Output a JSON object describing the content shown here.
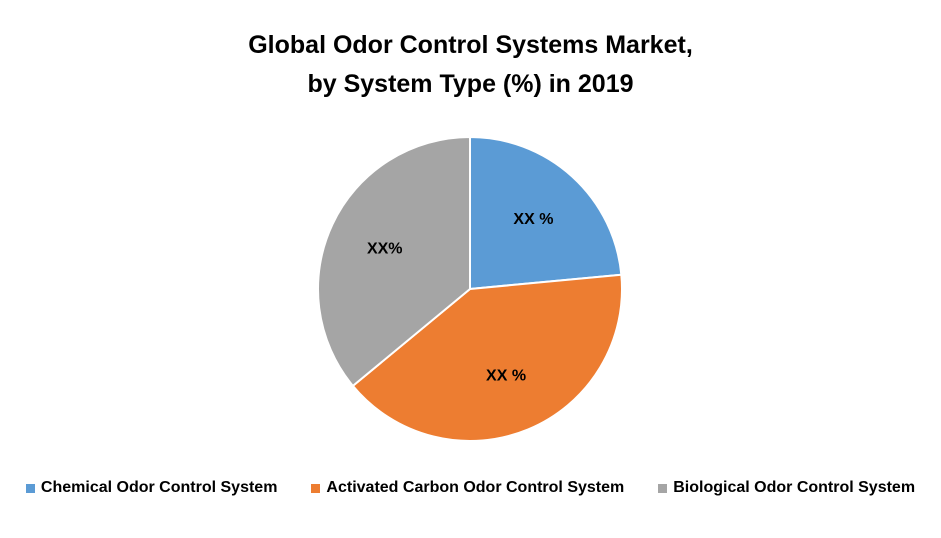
{
  "chart_data": {
    "type": "pie",
    "title_line1": "Global Odor Control Systems Market,",
    "title_line2": "by System Type (%) in 2019",
    "slices": [
      {
        "name": "Chemical Odor Control System",
        "value": 23.5,
        "label": "XX %",
        "color": "#5B9BD5"
      },
      {
        "name": "Activated Carbon Odor Control System",
        "value": 40.5,
        "label": "XX %",
        "color": "#ED7D31"
      },
      {
        "name": "Biological Odor Control System",
        "value": 36.0,
        "label": "XX%",
        "color": "#A5A5A5"
      }
    ],
    "legend_position": "bottom"
  }
}
